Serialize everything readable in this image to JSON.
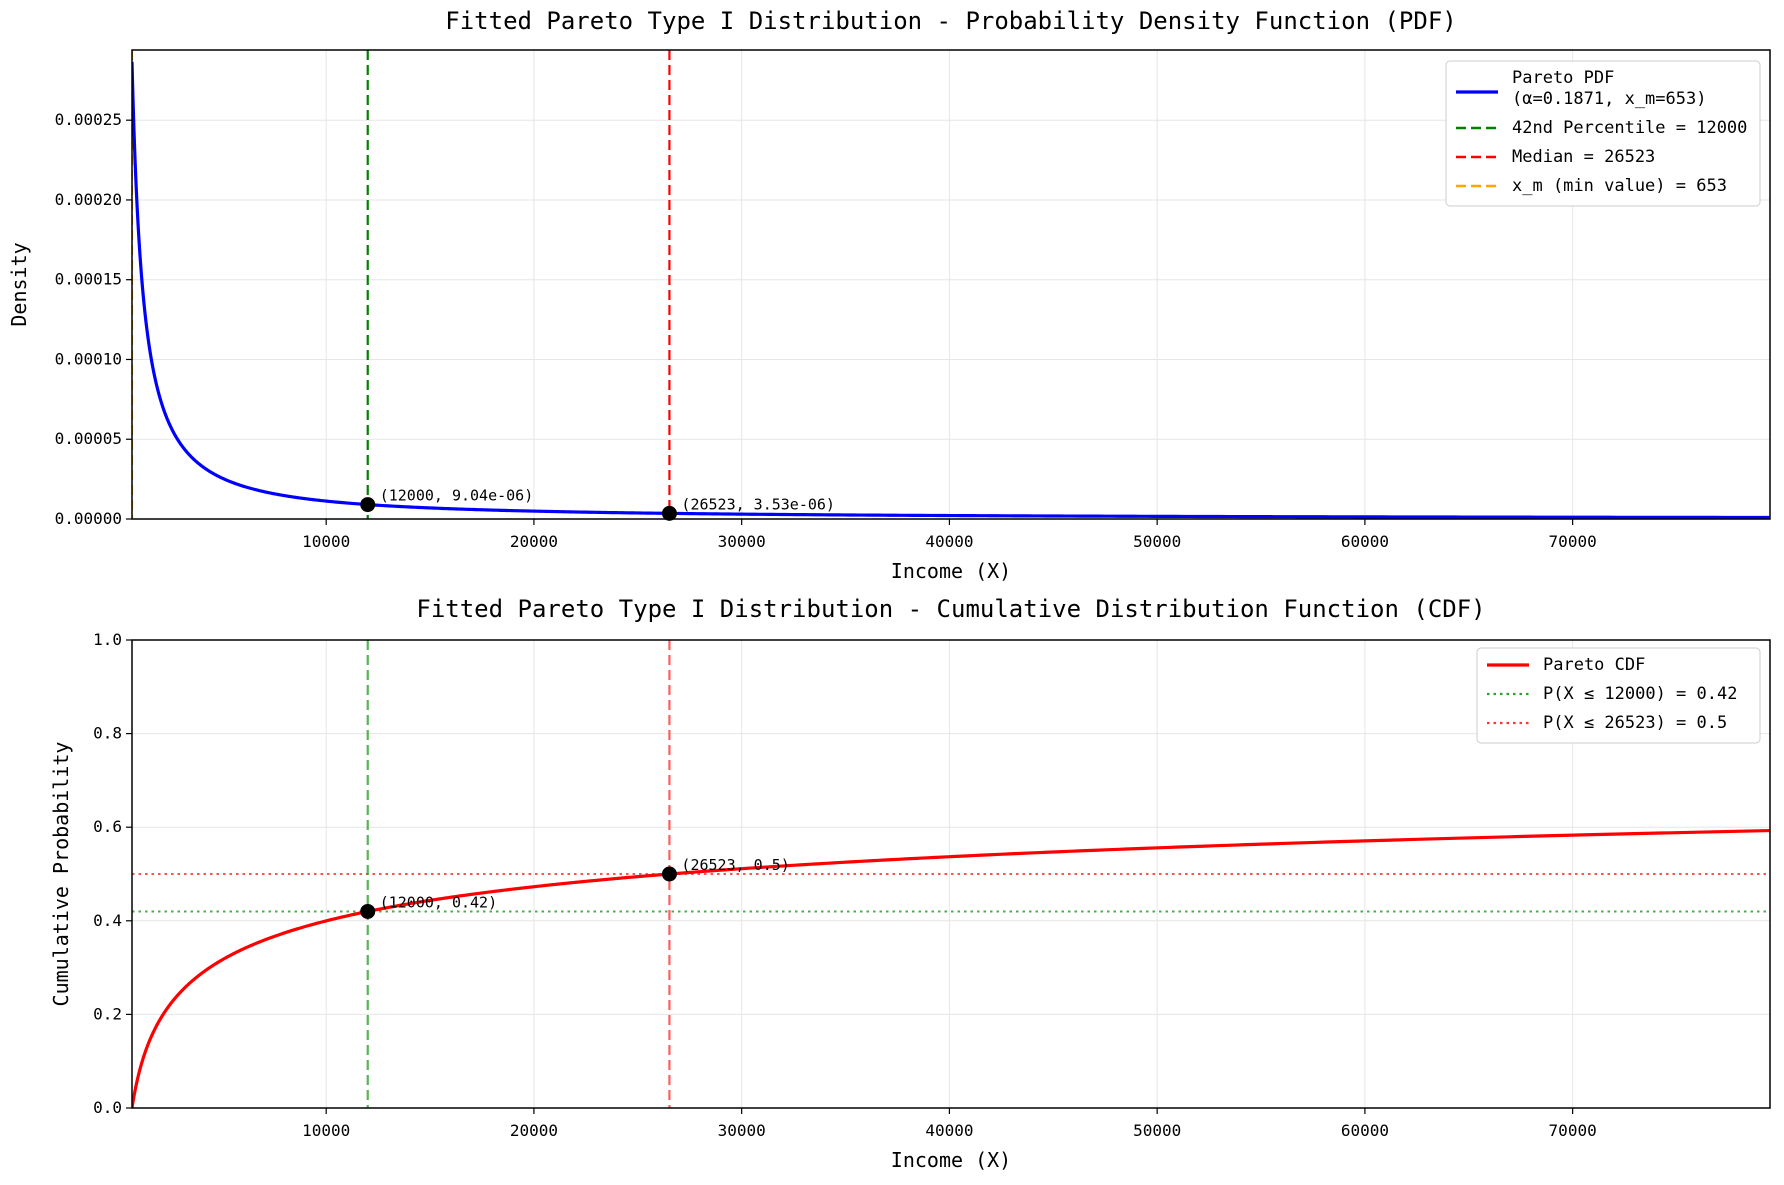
{
  "chart_data": [
    {
      "type": "line",
      "title": "Fitted Pareto Type I Distribution - Probability Density Function (PDF)",
      "xlabel": "Income (X)",
      "ylabel": "Density",
      "xlim": [
        653,
        79500
      ],
      "ylim": [
        0,
        0.000294
      ],
      "xticks": [
        10000,
        20000,
        30000,
        40000,
        50000,
        60000,
        70000
      ],
      "xtick_labels": [
        "10000",
        "20000",
        "30000",
        "40000",
        "50000",
        "60000",
        "70000"
      ],
      "yticks": [
        0,
        5e-05,
        0.0001,
        0.00015,
        0.0002,
        0.00025
      ],
      "ytick_labels": [
        "0.00000",
        "0.00005",
        "0.00010",
        "0.00015",
        "0.00020",
        "0.00025"
      ],
      "grid": true,
      "legend_position": "top-right",
      "series": [
        {
          "name": "Pareto PDF",
          "name_line2": "(α=0.1871, x_m=653)",
          "kind": "pareto_pdf",
          "alpha": 0.1871,
          "x_m": 653,
          "color": "#0000ff",
          "style": "solid"
        }
      ],
      "vlines": [
        {
          "name": "42nd Percentile = 12000",
          "x": 12000,
          "color": "#008000",
          "style": "dashed"
        },
        {
          "name": "Median = 26523",
          "x": 26523,
          "color": "#ff0000",
          "style": "dashed"
        },
        {
          "name": "x_m (min value) = 653",
          "x": 653,
          "color": "#ffa500",
          "style": "dashed"
        }
      ],
      "points": [
        {
          "x": 12000,
          "y": 9.04e-06,
          "label": "(12000, 9.04e-06)"
        },
        {
          "x": 26523,
          "y": 3.53e-06,
          "label": "(26523, 3.53e-06)"
        }
      ]
    },
    {
      "type": "line",
      "title": "Fitted Pareto Type I Distribution - Cumulative Distribution Function (CDF)",
      "xlabel": "Income (X)",
      "ylabel": "Cumulative Probability",
      "xlim": [
        653,
        79500
      ],
      "ylim": [
        0,
        1.0
      ],
      "xticks": [
        10000,
        20000,
        30000,
        40000,
        50000,
        60000,
        70000
      ],
      "xtick_labels": [
        "10000",
        "20000",
        "30000",
        "40000",
        "50000",
        "60000",
        "70000"
      ],
      "yticks": [
        0,
        0.2,
        0.4,
        0.6,
        0.8,
        1.0
      ],
      "ytick_labels": [
        "0.0",
        "0.2",
        "0.4",
        "0.6",
        "0.8",
        "1.0"
      ],
      "grid": true,
      "legend_position": "top-right",
      "series": [
        {
          "name": "Pareto CDF",
          "kind": "pareto_cdf",
          "alpha": 0.1871,
          "x_m": 653,
          "color": "#ff0000",
          "style": "solid"
        }
      ],
      "hlines": [
        {
          "name": "P(X ≤ 12000) = 0.42",
          "y": 0.42,
          "color": "#2ca02c",
          "style": "dotted"
        },
        {
          "name": "P(X ≤ 26523) = 0.5",
          "y": 0.5,
          "color": "#ff3333",
          "style": "dotted"
        }
      ],
      "vlines": [
        {
          "x": 12000,
          "color": "#2ca02c",
          "style": "dashed"
        },
        {
          "x": 26523,
          "color": "#ff3333",
          "style": "dashed"
        }
      ],
      "points": [
        {
          "x": 12000,
          "y": 0.42,
          "label": "(12000, 0.42)"
        },
        {
          "x": 26523,
          "y": 0.5,
          "label": "(26523, 0.5)"
        }
      ]
    }
  ]
}
